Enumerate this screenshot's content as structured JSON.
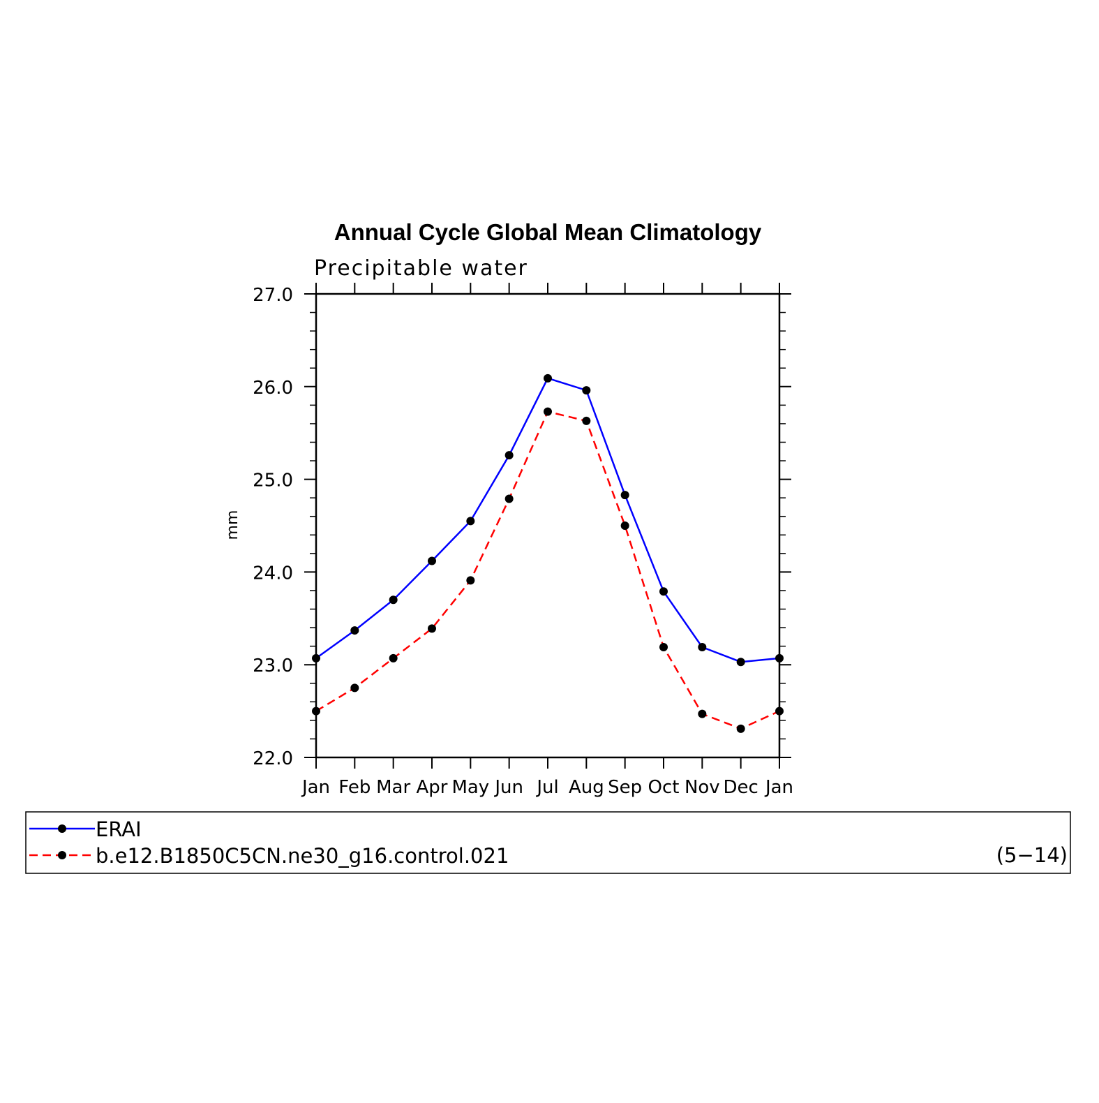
{
  "chart_data": {
    "type": "line",
    "title": "Annual Cycle Global Mean Climatology",
    "subtitle": "Precipitable water",
    "xlabel": "",
    "ylabel": "mm",
    "categories": [
      "Jan",
      "Feb",
      "Mar",
      "Apr",
      "May",
      "Jun",
      "Jul",
      "Aug",
      "Sep",
      "Oct",
      "Nov",
      "Dec",
      "Jan"
    ],
    "ylim": [
      22.0,
      27.0
    ],
    "yticks": [
      "22.0",
      "23.0",
      "24.0",
      "25.0",
      "26.0",
      "27.0"
    ],
    "y_minor_step": 0.2,
    "grid": false,
    "legend_position": "bottom",
    "legend_note": "(5−14)",
    "series": [
      {
        "name": "ERAI",
        "color": "#0000ff",
        "line_style": "solid",
        "marker": "filled-circle",
        "values": [
          23.07,
          23.37,
          23.7,
          24.12,
          24.55,
          25.26,
          26.09,
          25.96,
          24.83,
          23.79,
          23.19,
          23.03,
          23.07
        ]
      },
      {
        "name": "b.e12.B1850C5CN.ne30_g16.control.021",
        "color": "#ff0000",
        "line_style": "dashed",
        "marker": "filled-circle",
        "values": [
          22.5,
          22.75,
          23.07,
          23.39,
          23.91,
          24.79,
          25.73,
          25.63,
          24.5,
          23.19,
          22.47,
          22.31,
          22.5
        ]
      }
    ]
  }
}
